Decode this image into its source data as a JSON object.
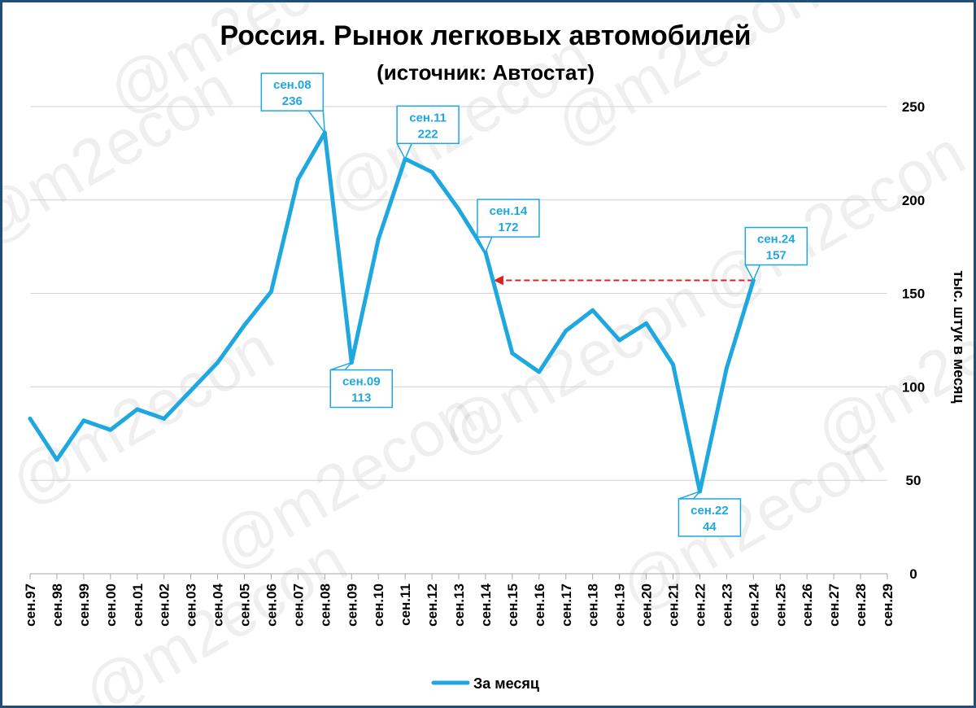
{
  "chart_data": {
    "type": "line",
    "title": "Россия. Рынок легковых автомобилей",
    "subtitle": "(источник: Автостат)",
    "ylabel": "тыс. штук в месяц",
    "ylim": [
      0,
      250
    ],
    "yticks": [
      0,
      50,
      100,
      150,
      200,
      250
    ],
    "categories": [
      "сен.97",
      "сен.98",
      "сен.99",
      "сен.00",
      "сен.01",
      "сен.02",
      "сен.03",
      "сен.04",
      "сен.05",
      "сен.06",
      "сен.07",
      "сен.08",
      "сен.09",
      "сен.10",
      "сен.11",
      "сен.12",
      "сен.13",
      "сен.14",
      "сен.15",
      "сен.16",
      "сен.17",
      "сен.18",
      "сен.19",
      "сен.20",
      "сен.21",
      "сен.22",
      "сен.23",
      "сен.24",
      "сен.25",
      "сен.26",
      "сен.27",
      "сен.28",
      "сен.29"
    ],
    "series": [
      {
        "name": "За месяц",
        "color": "#1fa8e0",
        "values": [
          83,
          61,
          82,
          77,
          88,
          83,
          98,
          113,
          133,
          151,
          211,
          236,
          113,
          179,
          222,
          215,
          195,
          172,
          118,
          108,
          130,
          141,
          125,
          134,
          112,
          44,
          110,
          157,
          null,
          null,
          null,
          null,
          null
        ]
      }
    ],
    "annotations": [
      {
        "category": "сен.08",
        "label": "сен.08",
        "value": "236",
        "placement": "above-left"
      },
      {
        "category": "сен.09",
        "label": "сен.09",
        "value": "113",
        "placement": "below-right"
      },
      {
        "category": "сен.11",
        "label": "сен.11",
        "value": "222",
        "placement": "above-right"
      },
      {
        "category": "сен.14",
        "label": "сен.14",
        "value": "172",
        "placement": "above-right"
      },
      {
        "category": "сен.22",
        "label": "сен.22",
        "value": "44",
        "placement": "below-right"
      },
      {
        "category": "сен.24",
        "label": "сен.24",
        "value": "157",
        "placement": "above-right"
      }
    ],
    "reference_arrow": {
      "from_category": "сен.24",
      "to_category": "сен.14",
      "value": 157,
      "color": "#e02020",
      "style": "dashed"
    },
    "grid": true,
    "legend_position": "bottom",
    "watermark": "@m2econ",
    "frame_color": "#1f4e79"
  }
}
